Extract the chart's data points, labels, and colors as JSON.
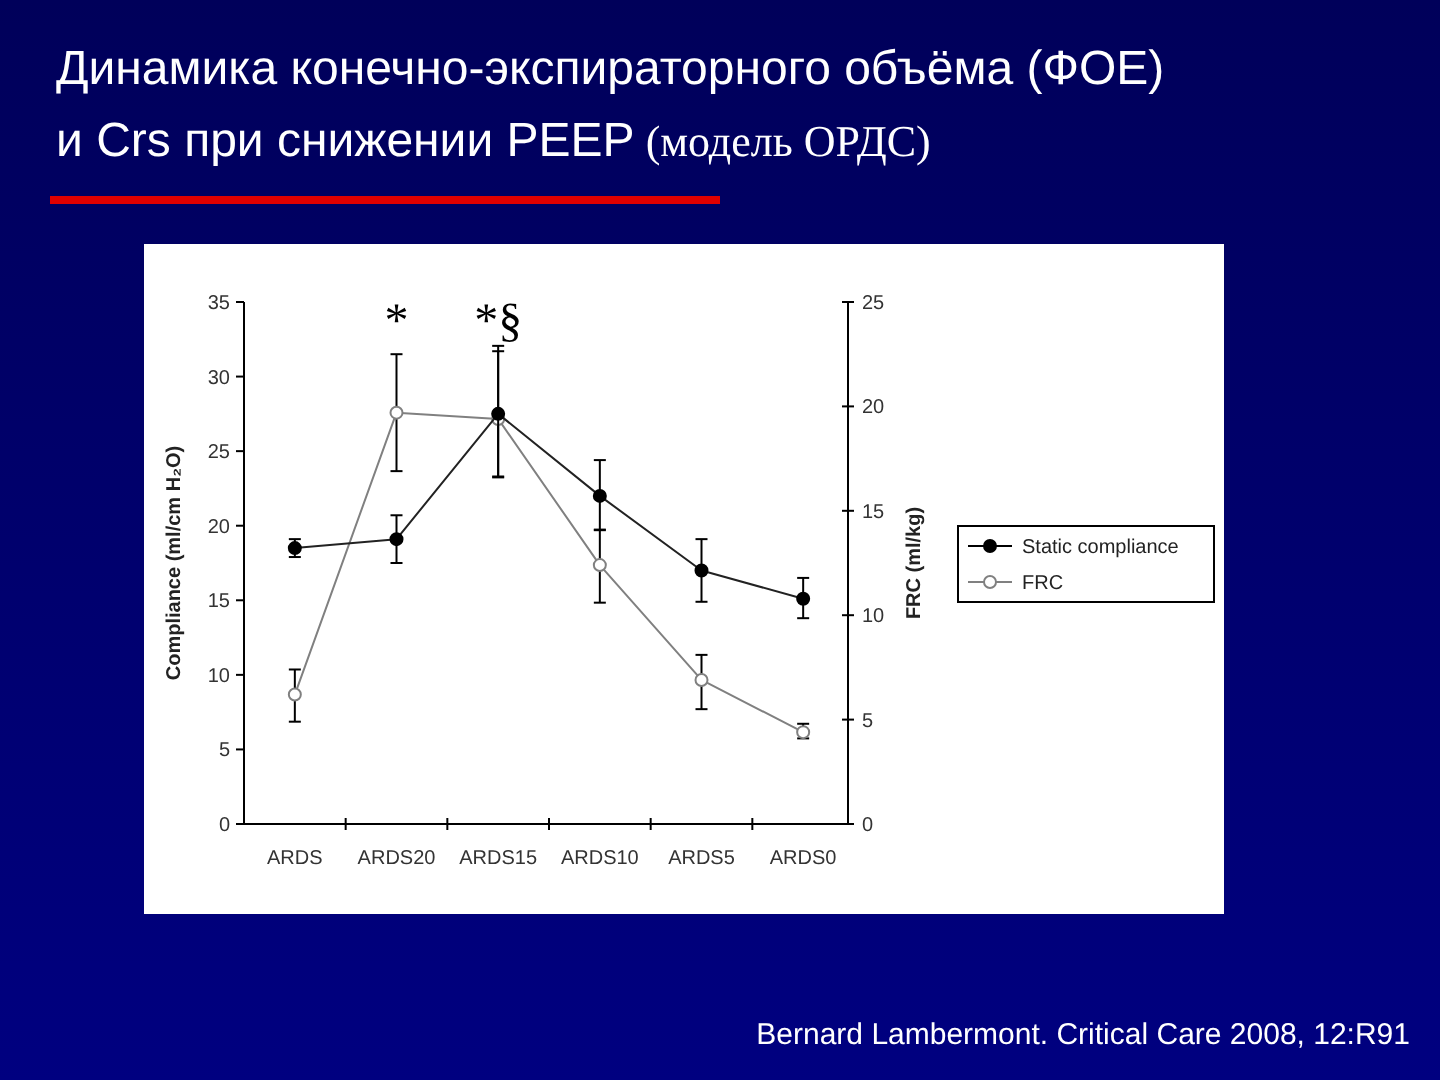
{
  "chart_data": {
    "type": "line",
    "title": "Динамика конечно-экспираторного объёма (ФОЕ)\nи Crs при снижении PEEP",
    "subtitle": "(модель ОРДС)",
    "categories": [
      "ARDS",
      "ARDS20",
      "ARDS15",
      "ARDS10",
      "ARDS5",
      "ARDS0"
    ],
    "ylabel": "Compliance (ml/cm H₂O)",
    "y2label": "FRC (ml/kg)",
    "ylim": [
      0,
      35
    ],
    "yticks": [
      0,
      5,
      10,
      15,
      20,
      25,
      30,
      35
    ],
    "y2lim": [
      0,
      25
    ],
    "y2ticks": [
      0,
      5,
      10,
      15,
      20,
      25
    ],
    "legend": "right",
    "grid": false,
    "series": [
      {
        "name": "Static compliance",
        "color": "#000000",
        "marker": "circle",
        "values": [
          18.5,
          19.1,
          27.5,
          22.0,
          17.0,
          15.1
        ],
        "errors": [
          [
            17.9,
            19.1
          ],
          [
            17.5,
            20.7
          ],
          [
            23.3,
            31.7
          ],
          [
            19.7,
            24.4
          ],
          [
            14.9,
            19.1
          ],
          [
            13.8,
            16.5
          ]
        ]
      },
      {
        "name": "FRC",
        "color": "#808080",
        "marker": "circle",
        "axis": "y2",
        "values": [
          6.2,
          19.7,
          19.4,
          12.4,
          6.9,
          4.4
        ],
        "errors": [
          [
            4.9,
            7.4
          ],
          [
            16.9,
            22.5
          ],
          [
            16.6,
            22.9
          ],
          [
            10.6,
            14.1
          ],
          [
            5.5,
            8.1
          ],
          [
            4.1,
            4.8
          ]
        ]
      }
    ],
    "annotations": [
      "*",
      "*§",
      "Bernard Lambermont. Critical Care 2008, 12:R91"
    ]
  }
}
